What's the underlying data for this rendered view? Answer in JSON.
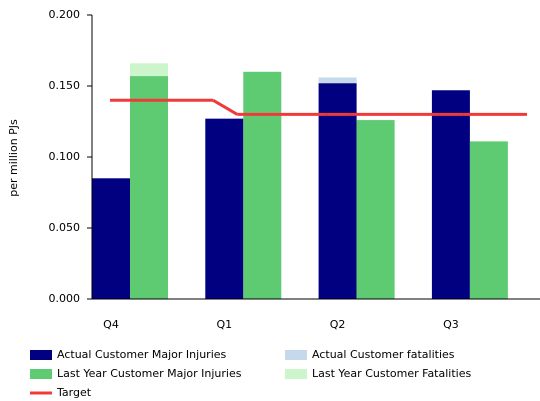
{
  "chart_data": {
    "type": "bar",
    "y_label": "per million PJs",
    "categories": [
      "Q4",
      "Q1",
      "Q2",
      "Q3"
    ],
    "ylim": [
      0,
      0.2
    ],
    "yticks": [
      {
        "value": 0,
        "label": "0.000"
      },
      {
        "value": 0.05,
        "label": "0.050"
      },
      {
        "value": 0.1,
        "label": "0.100"
      },
      {
        "value": 0.15,
        "label": "0.150"
      },
      {
        "value": 0.2,
        "label": "0.200"
      }
    ],
    "series": [
      {
        "name": "Actual Customer Major Injuries",
        "color": "#000080",
        "values": [
          0.085,
          0.127,
          0.152,
          0.147
        ]
      },
      {
        "name": "Actual Customer fatalities",
        "color": "#c6d9ec",
        "values": [
          null,
          null,
          0.004,
          null
        ]
      },
      {
        "name": "Last Year Customer Major Injuries",
        "color": "#5ecb72",
        "values": [
          0.157,
          0.16,
          0.126,
          0.111
        ]
      },
      {
        "name": "Last Year Customer Fatalities",
        "color": "#ccf5cc",
        "values": [
          0.009,
          null,
          null,
          null
        ]
      },
      {
        "name": "Target",
        "type": "line",
        "color": "#f03a3a",
        "values": [
          0.14,
          0.13,
          0.13,
          0.13
        ]
      }
    ]
  }
}
